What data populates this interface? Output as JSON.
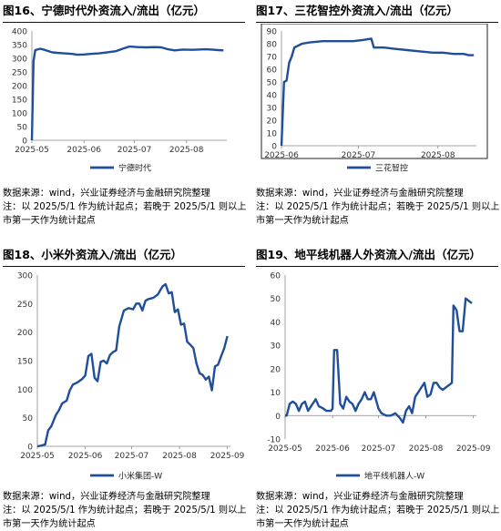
{
  "panels": [
    {
      "title": "图16、宁德时代外资流入/流出（亿元）",
      "source": "数据来源：wind，兴业证券经济与金融研究院整理",
      "note_line1": "注：以 2025/5/1 作为统计起点；若晚于 2025/5/1 则以上",
      "note_line2": "市第一天作为统计起点"
    },
    {
      "title": "图17、三花智控外资流入/流出（亿元）",
      "source": "数据来源：wind，兴业证券经济与金融研究院整理",
      "note_line1": "注：以 2025/5/1 作为统计起点；若晚于 2025/5/1 则以上",
      "note_line2": "市第一天作为统计起点"
    },
    {
      "title": "图18、小米外资流入/流出（亿元）",
      "source": "数据来源：wind，兴业证券经济与金融研究院整理",
      "note_line1": "注：以 2025/5/1 作为统计起点；若晚于 2025/5/1 则以上",
      "note_line2": "市第一天作为统计起点"
    },
    {
      "title": "图19、地平线机器人外资流入/流出（亿元）",
      "source": "数据来源：wind，兴业证券经济与金融研究院整理",
      "note_line1": "注：以 2025/5/1 作为统计起点；若晚于 2025/5/1 则以上",
      "note_line2": "市第一天作为统计起点"
    }
  ],
  "chart_data": [
    {
      "type": "line",
      "title": "",
      "series_name": "宁德时代",
      "color": "#1f4e9a",
      "xlim": [
        "2025-05-01",
        "2025-08-25"
      ],
      "ylim": [
        0,
        400
      ],
      "yticks": [
        0,
        50,
        100,
        150,
        200,
        250,
        300,
        350,
        400
      ],
      "xticks": [
        "2025-05-01",
        "2025-06-01",
        "2025-07-01",
        "2025-08-01"
      ],
      "xtick_labels": [
        "2025-05",
        "2025-06",
        "2025-07",
        "2025-08"
      ],
      "points": [
        [
          "2025-05-01",
          0
        ],
        [
          "2025-05-02",
          290
        ],
        [
          "2025-05-03",
          330
        ],
        [
          "2025-05-06",
          335
        ],
        [
          "2025-05-08",
          332
        ],
        [
          "2025-05-10",
          328
        ],
        [
          "2025-05-13",
          322
        ],
        [
          "2025-05-16",
          320
        ],
        [
          "2025-05-20",
          318
        ],
        [
          "2025-05-25",
          316
        ],
        [
          "2025-05-28",
          313
        ],
        [
          "2025-06-01",
          314
        ],
        [
          "2025-06-05",
          316
        ],
        [
          "2025-06-10",
          318
        ],
        [
          "2025-06-15",
          322
        ],
        [
          "2025-06-20",
          326
        ],
        [
          "2025-06-24",
          335
        ],
        [
          "2025-06-28",
          343
        ],
        [
          "2025-07-03",
          341
        ],
        [
          "2025-07-08",
          340
        ],
        [
          "2025-07-13",
          341
        ],
        [
          "2025-07-17",
          340
        ],
        [
          "2025-07-21",
          333
        ],
        [
          "2025-07-25",
          329
        ],
        [
          "2025-07-30",
          332
        ],
        [
          "2025-08-04",
          331
        ],
        [
          "2025-08-08",
          332
        ],
        [
          "2025-08-12",
          333
        ],
        [
          "2025-08-16",
          332
        ],
        [
          "2025-08-20",
          330
        ],
        [
          "2025-08-23",
          329
        ]
      ]
    },
    {
      "type": "line",
      "title": "",
      "series_name": "三花智控",
      "color": "#1f4e9a",
      "xlim": [
        "2025-06-01",
        "2025-08-16"
      ],
      "ylim": [
        0,
        90
      ],
      "yticks": [
        0,
        10,
        20,
        30,
        40,
        50,
        60,
        70,
        80,
        90
      ],
      "xticks": [
        "2025-06-01",
        "2025-07-01",
        "2025-08-01"
      ],
      "xtick_labels": [
        "2025-06",
        "2025-07",
        "2025-08"
      ],
      "points": [
        [
          "2025-06-01",
          0
        ],
        [
          "2025-06-02",
          50
        ],
        [
          "2025-06-03",
          51
        ],
        [
          "2025-06-04",
          65
        ],
        [
          "2025-06-05",
          70
        ],
        [
          "2025-06-06",
          77
        ],
        [
          "2025-06-09",
          80
        ],
        [
          "2025-06-12",
          81
        ],
        [
          "2025-06-17",
          82
        ],
        [
          "2025-06-23",
          82
        ],
        [
          "2025-06-29",
          82
        ],
        [
          "2025-07-03",
          83
        ],
        [
          "2025-07-06",
          84
        ],
        [
          "2025-07-07",
          77
        ],
        [
          "2025-07-11",
          77
        ],
        [
          "2025-07-15",
          76
        ],
        [
          "2025-07-20",
          75
        ],
        [
          "2025-07-25",
          74
        ],
        [
          "2025-07-30",
          73
        ],
        [
          "2025-08-03",
          73
        ],
        [
          "2025-08-07",
          72
        ],
        [
          "2025-08-11",
          72
        ],
        [
          "2025-08-13",
          71
        ],
        [
          "2025-08-15",
          71
        ]
      ]
    },
    {
      "type": "line",
      "title": "",
      "series_name": "小米集团-W",
      "color": "#1f4e9a",
      "xlim": [
        "2025-05-01",
        "2025-09-03"
      ],
      "ylim": [
        0,
        300
      ],
      "yticks": [
        0,
        50,
        100,
        150,
        200,
        250,
        300
      ],
      "xticks": [
        "2025-05-01",
        "2025-06-01",
        "2025-07-01",
        "2025-08-01",
        "2025-09-01"
      ],
      "xtick_labels": [
        "2025-05",
        "2025-06",
        "2025-07",
        "2025-08",
        "2025-09"
      ],
      "points": [
        [
          "2025-05-01",
          0
        ],
        [
          "2025-05-03",
          1
        ],
        [
          "2025-05-06",
          3
        ],
        [
          "2025-05-08",
          28
        ],
        [
          "2025-05-10",
          35
        ],
        [
          "2025-05-13",
          55
        ],
        [
          "2025-05-15",
          63
        ],
        [
          "2025-05-17",
          75
        ],
        [
          "2025-05-20",
          80
        ],
        [
          "2025-05-22",
          98
        ],
        [
          "2025-05-24",
          108
        ],
        [
          "2025-05-27",
          112
        ],
        [
          "2025-05-30",
          118
        ],
        [
          "2025-06-01",
          124
        ],
        [
          "2025-06-03",
          158
        ],
        [
          "2025-06-05",
          162
        ],
        [
          "2025-06-07",
          120
        ],
        [
          "2025-06-09",
          114
        ],
        [
          "2025-06-11",
          148
        ],
        [
          "2025-06-13",
          150
        ],
        [
          "2025-06-15",
          145
        ],
        [
          "2025-06-17",
          160
        ],
        [
          "2025-06-19",
          165
        ],
        [
          "2025-06-21",
          168
        ],
        [
          "2025-06-23",
          210
        ],
        [
          "2025-06-26",
          238
        ],
        [
          "2025-06-29",
          242
        ],
        [
          "2025-07-02",
          240
        ],
        [
          "2025-07-04",
          250
        ],
        [
          "2025-07-06",
          250
        ],
        [
          "2025-07-08",
          238
        ],
        [
          "2025-07-10",
          255
        ],
        [
          "2025-07-12",
          258
        ],
        [
          "2025-07-15",
          260
        ],
        [
          "2025-07-18",
          266
        ],
        [
          "2025-07-21",
          280
        ],
        [
          "2025-07-23",
          284
        ],
        [
          "2025-07-25",
          268
        ],
        [
          "2025-07-27",
          270
        ],
        [
          "2025-07-29",
          235
        ],
        [
          "2025-07-31",
          240
        ],
        [
          "2025-08-02",
          213
        ],
        [
          "2025-08-04",
          215
        ],
        [
          "2025-08-06",
          183
        ],
        [
          "2025-08-08",
          178
        ],
        [
          "2025-08-10",
          172
        ],
        [
          "2025-08-12",
          145
        ],
        [
          "2025-08-14",
          128
        ],
        [
          "2025-08-16",
          125
        ],
        [
          "2025-08-18",
          117
        ],
        [
          "2025-08-20",
          122
        ],
        [
          "2025-08-22",
          98
        ],
        [
          "2025-08-24",
          140
        ],
        [
          "2025-08-26",
          143
        ],
        [
          "2025-08-28",
          158
        ],
        [
          "2025-08-30",
          172
        ],
        [
          "2025-09-01",
          193
        ]
      ]
    },
    {
      "type": "line",
      "title": "",
      "series_name": "地平线机器人-W",
      "color": "#1f4e9a",
      "xlim": [
        "2025-05-01",
        "2025-09-03"
      ],
      "ylim": [
        -10,
        60
      ],
      "yticks": [
        -10,
        0,
        10,
        20,
        30,
        40,
        50,
        60
      ],
      "xticks": [
        "2025-05-01",
        "2025-06-01",
        "2025-07-01",
        "2025-08-01",
        "2025-09-01"
      ],
      "xtick_labels": [
        "2025-05",
        "2025-06",
        "2025-07",
        "2025-08",
        "2025-09"
      ],
      "points": [
        [
          "2025-05-01",
          0
        ],
        [
          "2025-05-02",
          0
        ],
        [
          "2025-05-04",
          5
        ],
        [
          "2025-05-06",
          6
        ],
        [
          "2025-05-08",
          5
        ],
        [
          "2025-05-10",
          2
        ],
        [
          "2025-05-12",
          5
        ],
        [
          "2025-05-14",
          6
        ],
        [
          "2025-05-16",
          2
        ],
        [
          "2025-05-19",
          5
        ],
        [
          "2025-05-21",
          7
        ],
        [
          "2025-05-23",
          4
        ],
        [
          "2025-05-26",
          3
        ],
        [
          "2025-05-28",
          2
        ],
        [
          "2025-05-31",
          2
        ],
        [
          "2025-06-01",
          3
        ],
        [
          "2025-06-02",
          28
        ],
        [
          "2025-06-04",
          28
        ],
        [
          "2025-06-06",
          5
        ],
        [
          "2025-06-08",
          3
        ],
        [
          "2025-06-10",
          8
        ],
        [
          "2025-06-12",
          6
        ],
        [
          "2025-06-14",
          5
        ],
        [
          "2025-06-16",
          2
        ],
        [
          "2025-06-18",
          5
        ],
        [
          "2025-06-20",
          7
        ],
        [
          "2025-06-22",
          10
        ],
        [
          "2025-06-24",
          7
        ],
        [
          "2025-06-26",
          7
        ],
        [
          "2025-06-28",
          10
        ],
        [
          "2025-07-01",
          3
        ],
        [
          "2025-07-03",
          1
        ],
        [
          "2025-07-06",
          0
        ],
        [
          "2025-07-09",
          0
        ],
        [
          "2025-07-12",
          1
        ],
        [
          "2025-07-15",
          -1
        ],
        [
          "2025-07-17",
          -3
        ],
        [
          "2025-07-19",
          2
        ],
        [
          "2025-07-21",
          4
        ],
        [
          "2025-07-23",
          1
        ],
        [
          "2025-07-25",
          8
        ],
        [
          "2025-07-27",
          10
        ],
        [
          "2025-07-29",
          12
        ],
        [
          "2025-07-31",
          14
        ],
        [
          "2025-08-02",
          8
        ],
        [
          "2025-08-04",
          9
        ],
        [
          "2025-08-06",
          14
        ],
        [
          "2025-08-08",
          14
        ],
        [
          "2025-08-10",
          12
        ],
        [
          "2025-08-12",
          11
        ],
        [
          "2025-08-14",
          12
        ],
        [
          "2025-08-16",
          13
        ],
        [
          "2025-08-18",
          14
        ],
        [
          "2025-08-19",
          47
        ],
        [
          "2025-08-21",
          45
        ],
        [
          "2025-08-23",
          36
        ],
        [
          "2025-08-25",
          36
        ],
        [
          "2025-08-27",
          50
        ],
        [
          "2025-08-29",
          49
        ],
        [
          "2025-08-31",
          48
        ]
      ]
    }
  ]
}
